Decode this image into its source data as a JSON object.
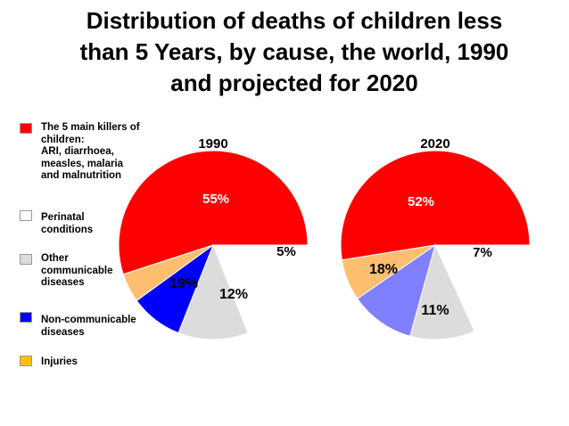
{
  "title_lines": [
    "Distribution of deaths of children less",
    "than 5 Years, by cause, the world, 1990",
    "and projected for 2020"
  ],
  "legend": [
    {
      "lines": [
        "The 5 main killers of",
        "children:",
        "ARI, diarrhoea,",
        "measles, malaria",
        "and malnutrition"
      ],
      "color": "#ff0000"
    },
    {
      "lines": [
        "Perinatal",
        "conditions"
      ],
      "color": "#ffffff"
    },
    {
      "lines": [
        "Other",
        "communicable",
        "diseases"
      ],
      "color": "#dcdcdc"
    },
    {
      "lines": [
        "Non-communicable",
        "diseases"
      ],
      "color": "#0000ff"
    },
    {
      "lines": [
        "Injuries"
      ],
      "color": "#ffc000"
    }
  ],
  "chart_data": [
    {
      "type": "pie",
      "title": "1990",
      "categories": [
        "The 5 main killers of children",
        "Perinatal conditions",
        "Other communicable diseases",
        "Non-communicable diseases",
        "Injuries"
      ],
      "values": [
        55,
        19,
        12,
        9,
        5
      ],
      "labels": [
        "55%",
        "19%",
        "12%",
        "9%",
        "5%"
      ],
      "colors": [
        "#ff0000",
        "#ffffff",
        "#dcdcdc",
        "#0000ff",
        "#fdbf6f"
      ],
      "label_colors": [
        "#ffffff",
        "#000000",
        "#000000",
        "#ffffff",
        "#000000"
      ]
    },
    {
      "type": "pie",
      "title": "2020",
      "categories": [
        "The 5 main killers of children",
        "Perinatal conditions",
        "Other communicable diseases",
        "Non-communicable diseases",
        "Injuries"
      ],
      "values": [
        52,
        18,
        11,
        11,
        7
      ],
      "labels": [
        "52%",
        "18%",
        "11%",
        "11%",
        "7%"
      ],
      "colors": [
        "#ff0000",
        "#ffffff",
        "#dcdcdc",
        "#8080ff",
        "#fdbf6f"
      ],
      "label_colors": [
        "#ffffff",
        "#000000",
        "#000000",
        "#ffffff",
        "#000000"
      ]
    }
  ]
}
